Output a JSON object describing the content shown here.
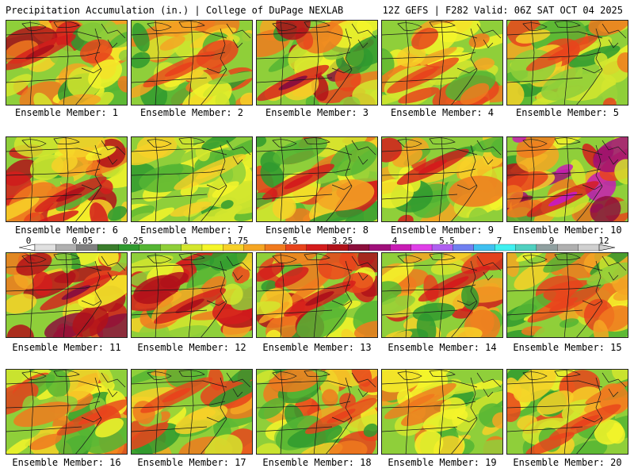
{
  "header": {
    "title": "Precipitation Accumulation (in.) | College of DuPage NEXLAB",
    "run_info": "12Z GEFS | F282 Valid: 06Z SAT OCT 04 2025"
  },
  "panels": [
    {
      "label": "Ensemble Member: 1",
      "seed": 11,
      "max_level": 14
    },
    {
      "label": "Ensemble Member: 2",
      "seed": 23,
      "max_level": 12
    },
    {
      "label": "Ensemble Member: 3",
      "seed": 37,
      "max_level": 15
    },
    {
      "label": "Ensemble Member: 4",
      "seed": 41,
      "max_level": 12
    },
    {
      "label": "Ensemble Member: 5",
      "seed": 53,
      "max_level": 12
    },
    {
      "label": "Ensemble Member: 6",
      "seed": 61,
      "max_level": 14
    },
    {
      "label": "Ensemble Member: 7",
      "seed": 73,
      "max_level": 9
    },
    {
      "label": "Ensemble Member: 8",
      "seed": 89,
      "max_level": 13
    },
    {
      "label": "Ensemble Member: 9",
      "seed": 97,
      "max_level": 13
    },
    {
      "label": "Ensemble Member: 10",
      "seed": 101,
      "max_level": 17
    },
    {
      "label": "Ensemble Member: 11",
      "seed": 113,
      "max_level": 15
    },
    {
      "label": "Ensemble Member: 12",
      "seed": 127,
      "max_level": 14
    },
    {
      "label": "Ensemble Member: 13",
      "seed": 131,
      "max_level": 14
    },
    {
      "label": "Ensemble Member: 14",
      "seed": 139,
      "max_level": 13
    },
    {
      "label": "Ensemble Member: 15",
      "seed": 149,
      "max_level": 12
    },
    {
      "label": "Ensemble Member: 16",
      "seed": 151,
      "max_level": 12
    },
    {
      "label": "Ensemble Member: 17",
      "seed": 163,
      "max_level": 12
    },
    {
      "label": "Ensemble Member: 18",
      "seed": 173,
      "max_level": 12
    },
    {
      "label": "Ensemble Member: 19",
      "seed": 181,
      "max_level": 11
    },
    {
      "label": "Ensemble Member: 20",
      "seed": 191,
      "max_level": 12
    }
  ],
  "colorbar": {
    "tick_labels": [
      "0",
      "0.05",
      "0.25",
      "1",
      "1.75",
      "2.5",
      "3.25",
      "4",
      "5.5",
      "7",
      "9",
      "12"
    ],
    "colors": [
      "#e0e0e0",
      "#b0b0b0",
      "#808080",
      "#3a7d2c",
      "#2f9a2f",
      "#55b534",
      "#8fcf3a",
      "#d4e62e",
      "#f5f52a",
      "#f7d128",
      "#f5a623",
      "#f07a1e",
      "#e8441c",
      "#d41c1c",
      "#b0121a",
      "#8c0f3c",
      "#a0107a",
      "#c81cb4",
      "#e040e8",
      "#b060f0",
      "#7080f0",
      "#40c0f0",
      "#40f0f0",
      "#50d0c0",
      "#90a0a0",
      "#b0b0b0",
      "#d0d0d0"
    ]
  }
}
